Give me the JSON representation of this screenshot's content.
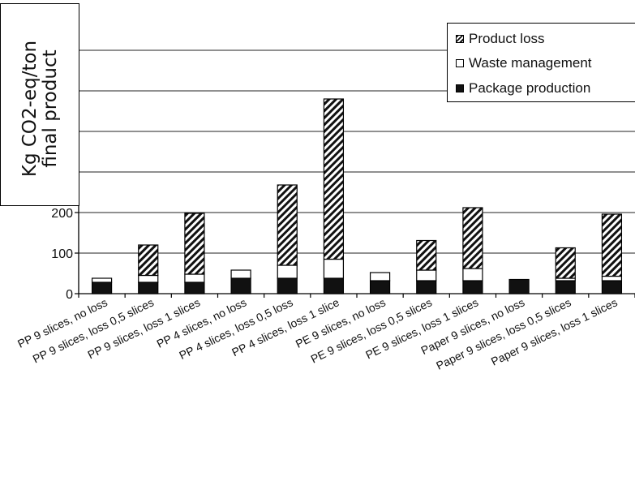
{
  "chart_data": {
    "type": "bar",
    "stacked": true,
    "ylabel_lines": [
      "Kg CO2-eq/ton",
      "final product"
    ],
    "yticks": [
      0,
      100,
      200
    ],
    "ylim": [
      0,
      600
    ],
    "grid": true,
    "legend_position": "top-right",
    "categories": [
      "PP 9 slices, no loss",
      "PP 9 slices, loss 0,5 slices",
      "PP 9 slices, loss 1 slices",
      "PP 4 slices, no loss",
      "PP 4 slices, loss 0,5 loss",
      "PP 4 slices, loss 1 slice",
      "PE 9 slices, no loss",
      "PE 9 slices, loss 0,5 slices",
      "PE 9 slices, loss 1 slices",
      "Paper 9 slices, no loss",
      "Paper 9 slices, loss 0,5 slices",
      "Paper 9 slices, loss 1 slices"
    ],
    "series": [
      {
        "name": "Package production",
        "fill": "black",
        "values": [
          28,
          28,
          28,
          38,
          38,
          38,
          32,
          32,
          32,
          35,
          32,
          32
        ]
      },
      {
        "name": "Waste management",
        "fill": "white",
        "values": [
          10,
          17,
          20,
          20,
          32,
          47,
          20,
          26,
          30,
          0,
          6,
          11
        ]
      },
      {
        "name": "Product loss",
        "fill": "hatch",
        "values": [
          0,
          75,
          150,
          0,
          198,
          395,
          0,
          73,
          150,
          0,
          75,
          153
        ]
      }
    ],
    "legend_order": [
      "Product loss",
      "Waste management",
      "Package production"
    ]
  }
}
